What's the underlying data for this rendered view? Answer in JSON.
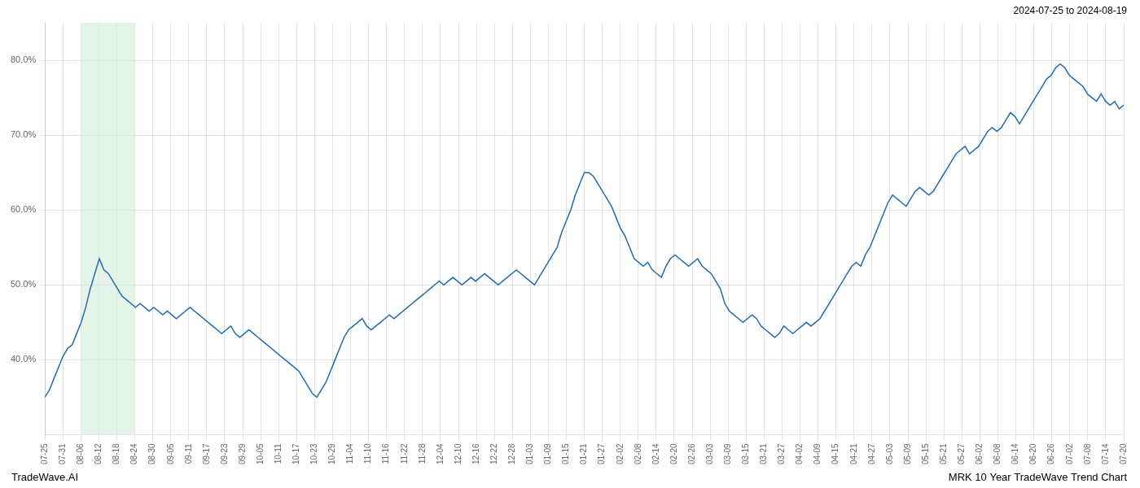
{
  "chart_data": {
    "type": "line",
    "title": "MRK 10 Year TradeWave Trend Chart",
    "subtitle": "2024-07-25 to 2024-08-19",
    "annotations": [
      "TradeWave.AI"
    ],
    "color": "#1f6cb0",
    "marker": "none",
    "line_style": "solid",
    "grid": true,
    "xlim": [
      0,
      60
    ],
    "xticks": [
      {
        "value": 0,
        "label": "07-25"
      },
      {
        "value": 1,
        "label": "07-31"
      },
      {
        "value": 2,
        "label": "08-06"
      },
      {
        "value": 3,
        "label": "08-12"
      },
      {
        "value": 4,
        "label": "08-18"
      },
      {
        "value": 5,
        "label": "08-24"
      },
      {
        "value": 6,
        "label": "08-30"
      },
      {
        "value": 7,
        "label": "09-05"
      },
      {
        "value": 8,
        "label": "09-11"
      },
      {
        "value": 9,
        "label": "09-17"
      },
      {
        "value": 10,
        "label": "09-23"
      },
      {
        "value": 11,
        "label": "09-29"
      },
      {
        "value": 12,
        "label": "10-05"
      },
      {
        "value": 13,
        "label": "10-11"
      },
      {
        "value": 14,
        "label": "10-17"
      },
      {
        "value": 15,
        "label": "10-23"
      },
      {
        "value": 16,
        "label": "10-29"
      },
      {
        "value": 17,
        "label": "11-04"
      },
      {
        "value": 18,
        "label": "11-10"
      },
      {
        "value": 19,
        "label": "11-16"
      },
      {
        "value": 20,
        "label": "11-22"
      },
      {
        "value": 21,
        "label": "11-28"
      },
      {
        "value": 22,
        "label": "12-04"
      },
      {
        "value": 23,
        "label": "12-10"
      },
      {
        "value": 24,
        "label": "12-16"
      },
      {
        "value": 25,
        "label": "12-22"
      },
      {
        "value": 26,
        "label": "12-28"
      },
      {
        "value": 27,
        "label": "01-03"
      },
      {
        "value": 28,
        "label": "01-09"
      },
      {
        "value": 29,
        "label": "01-15"
      },
      {
        "value": 30,
        "label": "01-21"
      },
      {
        "value": 31,
        "label": "01-27"
      },
      {
        "value": 32,
        "label": "02-02"
      },
      {
        "value": 33,
        "label": "02-08"
      },
      {
        "value": 34,
        "label": "02-14"
      },
      {
        "value": 35,
        "label": "02-20"
      },
      {
        "value": 36,
        "label": "02-26"
      },
      {
        "value": 37,
        "label": "03-03"
      },
      {
        "value": 38,
        "label": "03-09"
      },
      {
        "value": 39,
        "label": "03-15"
      },
      {
        "value": 40,
        "label": "03-21"
      },
      {
        "value": 41,
        "label": "03-27"
      },
      {
        "value": 42,
        "label": "04-02"
      },
      {
        "value": 43,
        "label": "04-09"
      },
      {
        "value": 44,
        "label": "04-15"
      },
      {
        "value": 45,
        "label": "04-21"
      },
      {
        "value": 46,
        "label": "04-27"
      },
      {
        "value": 47,
        "label": "05-03"
      },
      {
        "value": 48,
        "label": "05-09"
      },
      {
        "value": 49,
        "label": "05-15"
      },
      {
        "value": 50,
        "label": "05-21"
      },
      {
        "value": 51,
        "label": "05-27"
      },
      {
        "value": 52,
        "label": "06-02"
      },
      {
        "value": 53,
        "label": "06-08"
      },
      {
        "value": 54,
        "label": "06-14"
      },
      {
        "value": 55,
        "label": "06-20"
      },
      {
        "value": 56,
        "label": "06-26"
      },
      {
        "value": 57,
        "label": "07-02"
      },
      {
        "value": 58,
        "label": "07-08"
      },
      {
        "value": 59,
        "label": "07-14"
      },
      {
        "value": 60,
        "label": "07-20"
      }
    ],
    "ylim": [
      30,
      85
    ],
    "yticks": [
      {
        "value": 40,
        "label": "40.0%"
      },
      {
        "value": 50,
        "label": "50.0%"
      },
      {
        "value": 60,
        "label": "60.0%"
      },
      {
        "value": 70,
        "label": "70.0%"
      },
      {
        "value": 80,
        "label": "80.0%"
      }
    ],
    "highlight": {
      "xlim": [
        2,
        5
      ],
      "color": "#d4edda"
    },
    "values": [
      35.0,
      36.0,
      37.5,
      39.0,
      40.5,
      41.5,
      42.0,
      43.5,
      45.0,
      47.0,
      49.5,
      51.5,
      53.5,
      52.0,
      51.5,
      50.5,
      49.5,
      48.5,
      48.0,
      47.5,
      47.0,
      47.5,
      47.0,
      46.5,
      47.0,
      46.5,
      46.0,
      46.5,
      46.0,
      45.5,
      46.0,
      46.5,
      47.0,
      46.5,
      46.0,
      45.5,
      45.0,
      44.5,
      44.0,
      43.5,
      44.0,
      44.5,
      43.5,
      43.0,
      43.5,
      44.0,
      43.5,
      43.0,
      42.5,
      42.0,
      41.5,
      41.0,
      40.5,
      40.0,
      39.5,
      39.0,
      38.5,
      37.5,
      36.5,
      35.5,
      35.0,
      36.0,
      37.0,
      38.5,
      40.0,
      41.5,
      43.0,
      44.0,
      44.5,
      45.0,
      45.5,
      44.5,
      44.0,
      44.5,
      45.0,
      45.5,
      46.0,
      45.5,
      46.0,
      46.5,
      47.0,
      47.5,
      48.0,
      48.5,
      49.0,
      49.5,
      50.0,
      50.5,
      50.0,
      50.5,
      51.0,
      50.5,
      50.0,
      50.5,
      51.0,
      50.5,
      51.0,
      51.5,
      51.0,
      50.5,
      50.0,
      50.5,
      51.0,
      51.5,
      52.0,
      51.5,
      51.0,
      50.5,
      50.0,
      51.0,
      52.0,
      53.0,
      54.0,
      55.0,
      57.0,
      58.5,
      60.0,
      62.0,
      63.5,
      65.0,
      65.0,
      64.5,
      63.5,
      62.5,
      61.5,
      60.5,
      59.0,
      57.5,
      56.5,
      55.0,
      53.5,
      53.0,
      52.5,
      53.0,
      52.0,
      51.5,
      51.0,
      52.5,
      53.5,
      54.0,
      53.5,
      53.0,
      52.5,
      53.0,
      53.5,
      52.5,
      52.0,
      51.5,
      50.5,
      49.5,
      47.5,
      46.5,
      46.0,
      45.5,
      45.0,
      45.5,
      46.0,
      45.5,
      44.5,
      44.0,
      43.5,
      43.0,
      43.5,
      44.5,
      44.0,
      43.5,
      44.0,
      44.5,
      45.0,
      44.5,
      45.0,
      45.5,
      46.5,
      47.5,
      48.5,
      49.5,
      50.5,
      51.5,
      52.5,
      53.0,
      52.5,
      54.0,
      55.0,
      56.5,
      58.0,
      59.5,
      61.0,
      62.0,
      61.5,
      61.0,
      60.5,
      61.5,
      62.5,
      63.0,
      62.5,
      62.0,
      62.5,
      63.5,
      64.5,
      65.5,
      66.5,
      67.5,
      68.0,
      68.5,
      67.5,
      68.0,
      68.5,
      69.5,
      70.5,
      71.0,
      70.5,
      71.0,
      72.0,
      73.0,
      72.5,
      71.5,
      72.5,
      73.5,
      74.5,
      75.5,
      76.5,
      77.5,
      78.0,
      79.0,
      79.5,
      79.0,
      78.0,
      77.5,
      77.0,
      76.5,
      75.5,
      75.0,
      74.5,
      75.5,
      74.5,
      74.0,
      74.5,
      73.5,
      74.0
    ]
  }
}
